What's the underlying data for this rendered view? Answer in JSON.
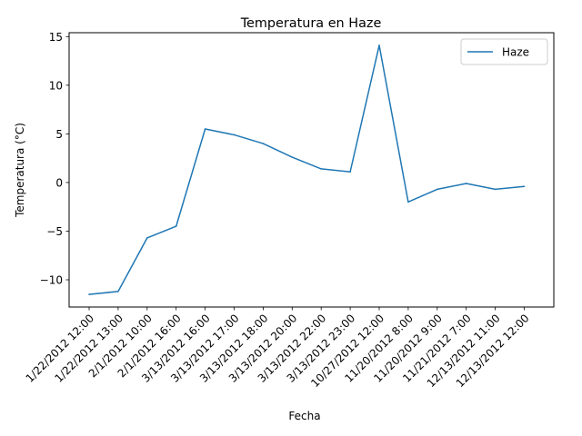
{
  "chart_data": {
    "type": "line",
    "title": "Temperatura en Haze",
    "xlabel": "Fecha",
    "ylabel": "Temperatura (°C)",
    "categories": [
      "1/22/2012 12:00",
      "1/22/2012 13:00",
      "2/1/2012 10:00",
      "2/1/2012 16:00",
      "3/13/2012 16:00",
      "3/13/2012 17:00",
      "3/13/2012 18:00",
      "3/13/2012 20:00",
      "3/13/2012 22:00",
      "3/13/2012 23:00",
      "10/27/2012 12:00",
      "11/20/2012 8:00",
      "11/20/2012 9:00",
      "11/21/2012 7:00",
      "12/13/2012 11:00",
      "12/13/2012 12:00"
    ],
    "series": [
      {
        "name": "Haze",
        "values": [
          -11.5,
          -11.2,
          -5.7,
          -4.5,
          5.5,
          4.9,
          4.0,
          2.6,
          1.4,
          1.1,
          14.1,
          -2.0,
          -0.7,
          -0.1,
          -0.7,
          -0.4
        ],
        "color": "#1f77b4"
      }
    ],
    "ylim": [
      -12.8,
      15.4
    ],
    "yticks": [
      -10,
      -5,
      0,
      5,
      10,
      15
    ],
    "grid": false,
    "legend_position": "top-right"
  }
}
